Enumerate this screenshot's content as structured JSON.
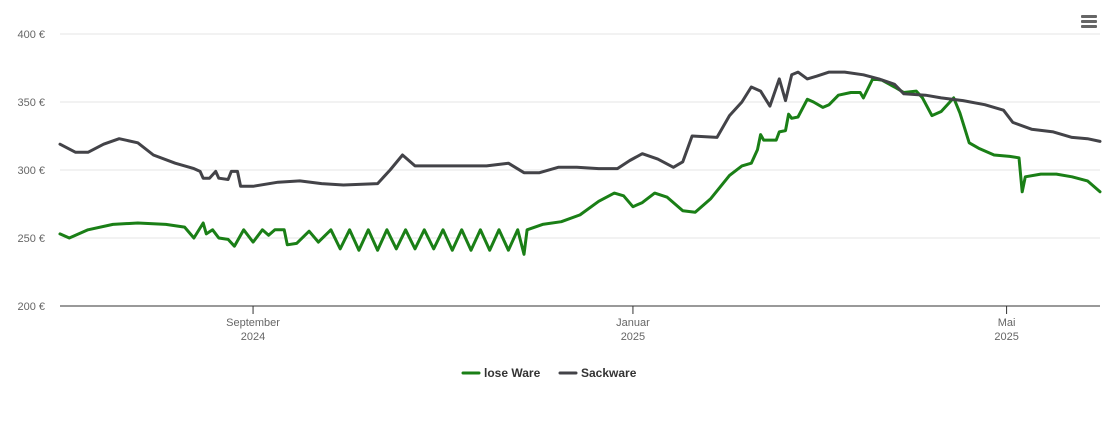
{
  "menu": {
    "icon": "hamburger-menu-icon"
  },
  "chart_data": {
    "type": "line",
    "title": "",
    "xlabel": "",
    "ylabel": "",
    "x_range": [
      "2024-07-01",
      "2025-05-31"
    ],
    "ylim": [
      200,
      400
    ],
    "y_ticks": [
      200,
      250,
      300,
      350,
      400
    ],
    "y_tick_labels": [
      "200 €",
      "250 €",
      "300 €",
      "350 €",
      "400 €"
    ],
    "x_ticks": [
      {
        "date": "2024-09-01",
        "line1": "September",
        "line2": "2024"
      },
      {
        "date": "2025-01-01",
        "line1": "Januar",
        "line2": "2025"
      },
      {
        "date": "2025-05-01",
        "line1": "Mai",
        "line2": "2025"
      }
    ],
    "grid": true,
    "legend_position": "bottom-center",
    "series": [
      {
        "name": "lose Ware",
        "color": "#1a7f16",
        "points": [
          [
            "2024-07-01",
            253
          ],
          [
            "2024-07-04",
            250
          ],
          [
            "2024-07-10",
            256
          ],
          [
            "2024-07-18",
            260
          ],
          [
            "2024-07-26",
            261
          ],
          [
            "2024-08-04",
            260
          ],
          [
            "2024-08-10",
            258
          ],
          [
            "2024-08-13",
            250
          ],
          [
            "2024-08-16",
            261
          ],
          [
            "2024-08-17",
            253
          ],
          [
            "2024-08-19",
            256
          ],
          [
            "2024-08-21",
            250
          ],
          [
            "2024-08-24",
            249
          ],
          [
            "2024-08-26",
            244
          ],
          [
            "2024-08-29",
            256
          ],
          [
            "2024-09-01",
            247
          ],
          [
            "2024-09-04",
            256
          ],
          [
            "2024-09-06",
            252
          ],
          [
            "2024-09-08",
            256
          ],
          [
            "2024-09-11",
            256
          ],
          [
            "2024-09-12",
            245
          ],
          [
            "2024-09-15",
            246
          ],
          [
            "2024-09-19",
            255
          ],
          [
            "2024-09-22",
            247
          ],
          [
            "2024-09-26",
            256
          ],
          [
            "2024-09-29",
            242
          ],
          [
            "2024-10-02",
            256
          ],
          [
            "2024-10-05",
            241
          ],
          [
            "2024-10-08",
            256
          ],
          [
            "2024-10-11",
            241
          ],
          [
            "2024-10-14",
            256
          ],
          [
            "2024-10-17",
            242
          ],
          [
            "2024-10-20",
            256
          ],
          [
            "2024-10-23",
            242
          ],
          [
            "2024-10-26",
            256
          ],
          [
            "2024-10-29",
            242
          ],
          [
            "2024-11-01",
            256
          ],
          [
            "2024-11-04",
            241
          ],
          [
            "2024-11-07",
            256
          ],
          [
            "2024-11-10",
            241
          ],
          [
            "2024-11-13",
            256
          ],
          [
            "2024-11-16",
            241
          ],
          [
            "2024-11-19",
            256
          ],
          [
            "2024-11-22",
            241
          ],
          [
            "2024-11-25",
            256
          ],
          [
            "2024-11-27",
            238
          ],
          [
            "2024-11-28",
            256
          ],
          [
            "2024-12-03",
            260
          ],
          [
            "2024-12-09",
            262
          ],
          [
            "2024-12-15",
            267
          ],
          [
            "2024-12-21",
            277
          ],
          [
            "2024-12-26",
            283
          ],
          [
            "2024-12-29",
            281
          ],
          [
            "2025-01-01",
            273
          ],
          [
            "2025-01-04",
            276
          ],
          [
            "2025-01-08",
            283
          ],
          [
            "2025-01-12",
            280
          ],
          [
            "2025-01-17",
            270
          ],
          [
            "2025-01-21",
            269
          ],
          [
            "2025-01-26",
            279
          ],
          [
            "2025-02-01",
            296
          ],
          [
            "2025-02-05",
            303
          ],
          [
            "2025-02-08",
            305
          ],
          [
            "2025-02-10",
            315
          ],
          [
            "2025-02-11",
            326
          ],
          [
            "2025-02-12",
            322
          ],
          [
            "2025-02-16",
            322
          ],
          [
            "2025-02-17",
            328
          ],
          [
            "2025-02-19",
            329
          ],
          [
            "2025-02-20",
            341
          ],
          [
            "2025-02-21",
            338
          ],
          [
            "2025-02-23",
            339
          ],
          [
            "2025-02-26",
            352
          ],
          [
            "2025-02-28",
            350
          ],
          [
            "2025-03-03",
            346
          ],
          [
            "2025-03-05",
            348
          ],
          [
            "2025-03-08",
            355
          ],
          [
            "2025-03-12",
            357
          ],
          [
            "2025-03-15",
            357
          ],
          [
            "2025-03-16",
            353
          ],
          [
            "2025-03-19",
            367
          ],
          [
            "2025-03-22",
            366
          ],
          [
            "2025-03-26",
            361
          ],
          [
            "2025-03-29",
            357
          ],
          [
            "2025-04-02",
            358
          ],
          [
            "2025-04-04",
            353
          ],
          [
            "2025-04-07",
            340
          ],
          [
            "2025-04-10",
            343
          ],
          [
            "2025-04-14",
            353
          ],
          [
            "2025-04-16",
            342
          ],
          [
            "2025-04-19",
            320
          ],
          [
            "2025-04-22",
            316
          ],
          [
            "2025-04-27",
            311
          ],
          [
            "2025-05-02",
            310
          ],
          [
            "2025-05-05",
            309
          ],
          [
            "2025-05-06",
            284
          ],
          [
            "2025-05-07",
            295
          ],
          [
            "2025-05-12",
            297
          ],
          [
            "2025-05-17",
            297
          ],
          [
            "2025-05-22",
            295
          ],
          [
            "2025-05-27",
            292
          ],
          [
            "2025-05-31",
            284
          ]
        ]
      },
      {
        "name": "Sackware",
        "color": "#434348",
        "points": [
          [
            "2024-07-01",
            319
          ],
          [
            "2024-07-06",
            313
          ],
          [
            "2024-07-10",
            313
          ],
          [
            "2024-07-15",
            319
          ],
          [
            "2024-07-20",
            323
          ],
          [
            "2024-07-26",
            320
          ],
          [
            "2024-07-31",
            311
          ],
          [
            "2024-08-07",
            305
          ],
          [
            "2024-08-13",
            301
          ],
          [
            "2024-08-15",
            299
          ],
          [
            "2024-08-16",
            294
          ],
          [
            "2024-08-18",
            294
          ],
          [
            "2024-08-20",
            299
          ],
          [
            "2024-08-21",
            294
          ],
          [
            "2024-08-24",
            293
          ],
          [
            "2024-08-25",
            299
          ],
          [
            "2024-08-27",
            299
          ],
          [
            "2024-08-28",
            288
          ],
          [
            "2024-09-01",
            288
          ],
          [
            "2024-09-09",
            291
          ],
          [
            "2024-09-16",
            292
          ],
          [
            "2024-09-23",
            290
          ],
          [
            "2024-09-30",
            289
          ],
          [
            "2024-10-11",
            290
          ],
          [
            "2024-10-15",
            300
          ],
          [
            "2024-10-19",
            311
          ],
          [
            "2024-10-23",
            303
          ],
          [
            "2024-11-01",
            303
          ],
          [
            "2024-11-15",
            303
          ],
          [
            "2024-11-22",
            305
          ],
          [
            "2024-11-27",
            298
          ],
          [
            "2024-12-02",
            298
          ],
          [
            "2024-12-08",
            302
          ],
          [
            "2024-12-14",
            302
          ],
          [
            "2024-12-21",
            301
          ],
          [
            "2024-12-27",
            301
          ],
          [
            "2024-12-31",
            307
          ],
          [
            "2025-01-04",
            312
          ],
          [
            "2025-01-09",
            308
          ],
          [
            "2025-01-14",
            302
          ],
          [
            "2025-01-17",
            306
          ],
          [
            "2025-01-20",
            325
          ],
          [
            "2025-01-28",
            324
          ],
          [
            "2025-02-01",
            340
          ],
          [
            "2025-02-05",
            350
          ],
          [
            "2025-02-08",
            361
          ],
          [
            "2025-02-11",
            358
          ],
          [
            "2025-02-14",
            347
          ],
          [
            "2025-02-17",
            367
          ],
          [
            "2025-02-19",
            351
          ],
          [
            "2025-02-21",
            370
          ],
          [
            "2025-02-23",
            372
          ],
          [
            "2025-02-26",
            367
          ],
          [
            "2025-03-01",
            369
          ],
          [
            "2025-03-05",
            372
          ],
          [
            "2025-03-10",
            372
          ],
          [
            "2025-03-16",
            370
          ],
          [
            "2025-03-21",
            367
          ],
          [
            "2025-03-26",
            363
          ],
          [
            "2025-03-29",
            356
          ],
          [
            "2025-04-05",
            355
          ],
          [
            "2025-04-10",
            353
          ],
          [
            "2025-04-17",
            351
          ],
          [
            "2025-04-24",
            348
          ],
          [
            "2025-04-30",
            344
          ],
          [
            "2025-05-03",
            335
          ],
          [
            "2025-05-09",
            330
          ],
          [
            "2025-05-16",
            328
          ],
          [
            "2025-05-22",
            324
          ],
          [
            "2025-05-27",
            323
          ],
          [
            "2025-05-31",
            321
          ]
        ]
      }
    ]
  }
}
